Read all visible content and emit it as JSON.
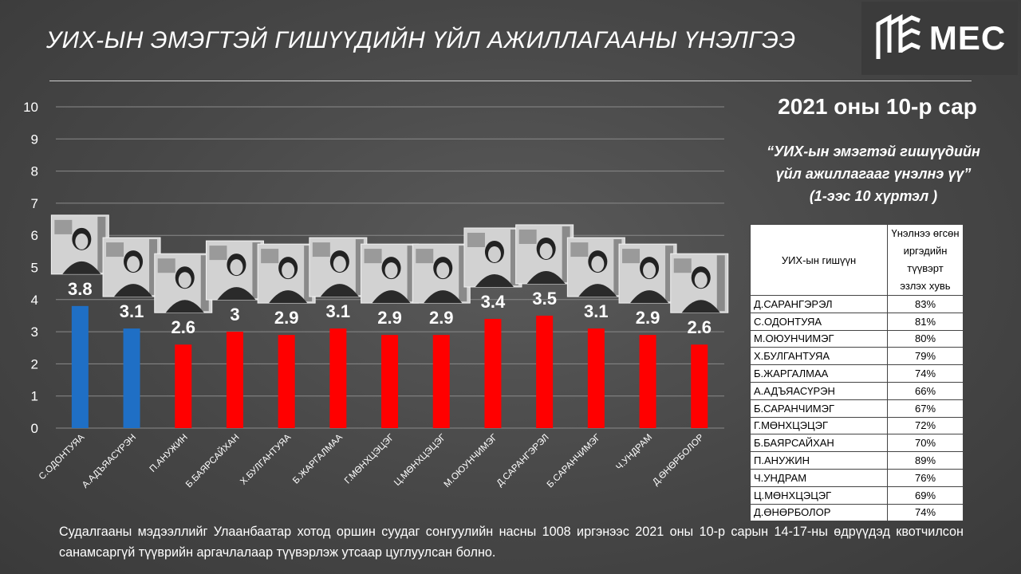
{
  "title": "УИХ-ЫН ЭМЭГТЭЙ ГИШҮҮДИЙН ҮЙЛ АЖИЛЛАГААНЫ ҮНЭЛГЭЭ",
  "logo": {
    "text": "MEC",
    "icon": "mec-logo-icon"
  },
  "subtitle": "2021 оны 10-р сар",
  "question": {
    "line1": "“УИХ-ын эмэгтэй гишүүдийн",
    "line2": "үйл ажиллагааг үнэлнэ үү”",
    "line3": "(1-ээс 10 хүртэл )"
  },
  "chart_data": {
    "type": "bar",
    "title": "",
    "xlabel": "",
    "ylabel": "",
    "ylim": [
      0,
      10
    ],
    "yticks": [
      0,
      1,
      2,
      3,
      4,
      5,
      6,
      7,
      8,
      9,
      10
    ],
    "grid": true,
    "categories": [
      "С.ОДОНТУЯА",
      "А.АДЪЯАСҮРЭН",
      "П.АНУЖИН",
      "Б.БАЯРСАЙХАН",
      "Х.БУЛГАНТУЯА",
      "Б.ЖАРГАЛМАА",
      "Г.МӨНХЦЭЦЭГ",
      "Ц.МӨНХЦЭЦЭГ",
      "М.ОЮУНЧИМЭГ",
      "Д.САРАНГЭРЭЛ",
      "Б.САРАНЧИМЭГ",
      "Ч.УНДРАМ",
      "Д.ӨНӨРБОЛОР"
    ],
    "values": [
      3.8,
      3.1,
      2.6,
      3,
      2.9,
      3.1,
      2.9,
      2.9,
      3.4,
      3.5,
      3.1,
      2.9,
      2.6
    ],
    "data_labels": [
      "3.8",
      "3.1",
      "2.6",
      "3",
      "2.9",
      "3.1",
      "2.9",
      "2.9",
      "3.4",
      "3.5",
      "3.1",
      "2.9",
      "2.6"
    ],
    "bar_colors": [
      "#1f6fc5",
      "#1f6fc5",
      "#ff0000",
      "#ff0000",
      "#ff0000",
      "#ff0000",
      "#ff0000",
      "#ff0000",
      "#ff0000",
      "#ff0000",
      "#ff0000",
      "#ff0000",
      "#ff0000"
    ],
    "portrait_icon": "member-portrait-photo"
  },
  "table": {
    "header_member": "УИХ-ын гишүүн",
    "header_pct_1": "Үнэлнээ өгсөн",
    "header_pct_2": "иргэдийн түүвэрт",
    "header_pct_3": "эзлэх хувь",
    "rows": [
      {
        "name": "Д.САРАНГЭРЭЛ",
        "pct": "83%"
      },
      {
        "name": "С.ОДОНТУЯА",
        "pct": "81%"
      },
      {
        "name": "М.ОЮУНЧИМЭГ",
        "pct": "80%"
      },
      {
        "name": "Х.БУЛГАНТУЯА",
        "pct": "79%"
      },
      {
        "name": "Б.ЖАРГАЛМАА",
        "pct": "74%"
      },
      {
        "name": "А.АДЪЯАСҮРЭН",
        "pct": "66%"
      },
      {
        "name": "Б.САРАНЧИМЭГ",
        "pct": "67%"
      },
      {
        "name": "Г.МӨНХЦЭЦЭГ",
        "pct": "72%"
      },
      {
        "name": "Б.БАЯРСАЙХАН",
        "pct": "70%"
      },
      {
        "name": "П.АНУЖИН",
        "pct": "89%"
      },
      {
        "name": "Ч.УНДРАМ",
        "pct": "76%"
      },
      {
        "name": "Ц.МӨНХЦЭЦЭГ",
        "pct": "69%"
      },
      {
        "name": "Д.ӨНӨРБОЛОР",
        "pct": "74%"
      }
    ]
  },
  "footnote": "Судалгааны мэдээллийг Улаанбаатар хотод оршин суудаг сонгуулийн насны 1008 иргэнээс 2021 оны 10-р сарын 14-17-ны өдрүүдэд квотчилсон санамсаргүй түүврийн аргачлалаар түүвэрлэж утсаар цуглуулсан болно."
}
